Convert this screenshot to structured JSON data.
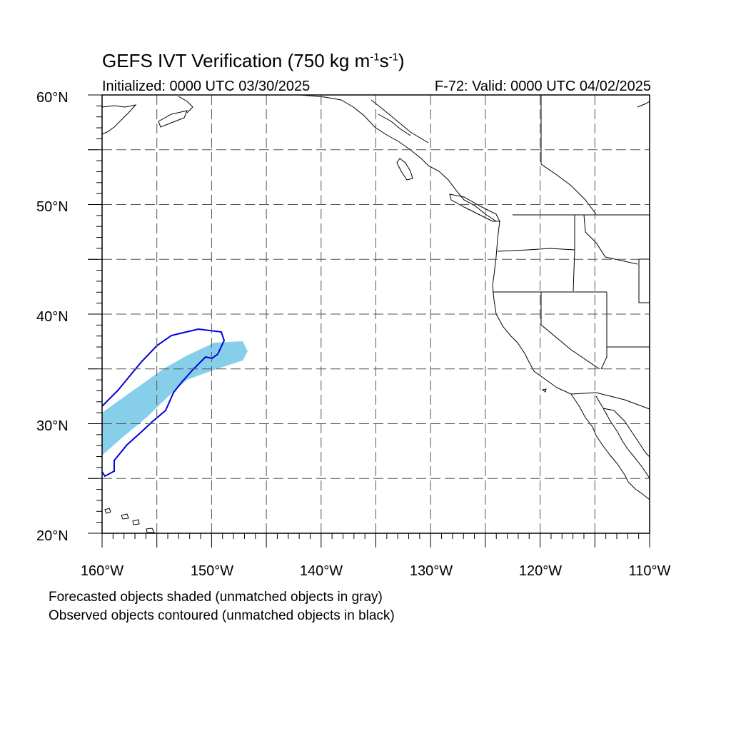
{
  "title": {
    "prefix": "GEFS IVT Verification (750 kg m",
    "exp1": "-1",
    "middle": "s",
    "exp2": "-1",
    "suffix": ")"
  },
  "initialized": "Initialized: 0000 UTC 03/30/2025",
  "valid": "F-72: Valid: 0000 UTC 04/02/2025",
  "lat_labels": [
    "60°N",
    "50°N",
    "40°N",
    "30°N",
    "20°N"
  ],
  "lon_labels": [
    "160°W",
    "150°W",
    "140°W",
    "130°W",
    "120°W",
    "110°W"
  ],
  "notes": {
    "line1": "Forecasted objects shaded (unmatched objects in gray)",
    "line2": "Observed objects contoured (unmatched objects in black)"
  },
  "colors": {
    "forecast_fill": "#87ceeb",
    "observed_contour": "#0000dd",
    "coastline": "#000000",
    "grid": "#555555"
  },
  "map_extent": {
    "lon_min": -160,
    "lon_max": -110,
    "lat_min": 20,
    "lat_max": 60
  }
}
